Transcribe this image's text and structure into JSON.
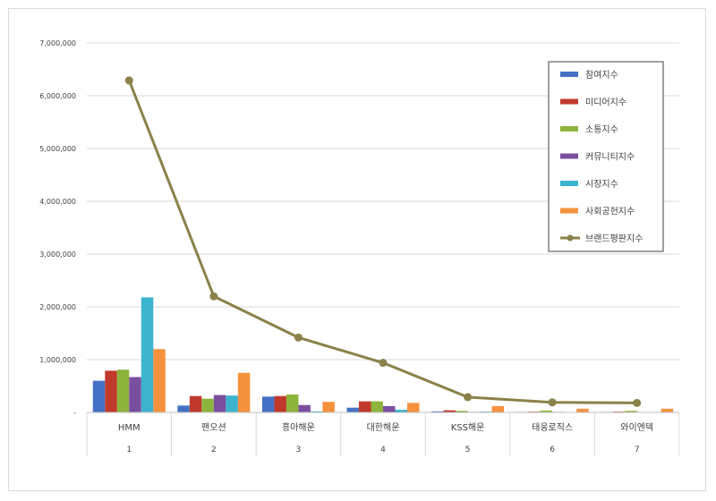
{
  "chart_data": {
    "type": "bar",
    "title": "",
    "xlabel": "",
    "ylabel": "",
    "ylim": [
      0,
      7000000
    ],
    "yticks": [
      0,
      1000000,
      2000000,
      3000000,
      4000000,
      5000000,
      6000000,
      7000000
    ],
    "ytick_labels": [
      "-",
      "1,000,000",
      "2,000,000",
      "3,000,000",
      "4,000,000",
      "5,000,000",
      "6,000,000",
      "7,000,000"
    ],
    "grid": true,
    "legend_position": "top-right",
    "categories": [
      "HMM",
      "팬오션",
      "흥아해운",
      "대한해운",
      "KSS해운",
      "태웅로직스",
      "와이엔텍"
    ],
    "category_ranks": [
      "1",
      "2",
      "3",
      "4",
      "5",
      "6",
      "7"
    ],
    "series": [
      {
        "name": "참여지수",
        "type": "bar",
        "color": "#4472C4",
        "values": [
          600000,
          130000,
          300000,
          90000,
          20000,
          10000,
          10000
        ]
      },
      {
        "name": "미디어지수",
        "type": "bar",
        "color": "#C0392B",
        "values": [
          790000,
          310000,
          310000,
          210000,
          40000,
          15000,
          15000
        ]
      },
      {
        "name": "소통지수",
        "type": "bar",
        "color": "#8DB53C",
        "values": [
          810000,
          260000,
          340000,
          210000,
          30000,
          35000,
          30000
        ]
      },
      {
        "name": "커뮤니티지수",
        "type": "bar",
        "color": "#7B4FA0",
        "values": [
          670000,
          330000,
          140000,
          120000,
          10000,
          10000,
          5000
        ]
      },
      {
        "name": "시장지수",
        "type": "bar",
        "color": "#3CB4D0",
        "values": [
          2180000,
          320000,
          20000,
          50000,
          15000,
          5000,
          5000
        ]
      },
      {
        "name": "사회공헌지수",
        "type": "bar",
        "color": "#F5923E",
        "values": [
          1200000,
          750000,
          200000,
          180000,
          120000,
          70000,
          70000
        ]
      },
      {
        "name": "브랜드평판지수",
        "type": "line",
        "color": "#8B8149",
        "values": [
          6290000,
          2200000,
          1420000,
          940000,
          290000,
          190000,
          180000
        ]
      }
    ]
  }
}
